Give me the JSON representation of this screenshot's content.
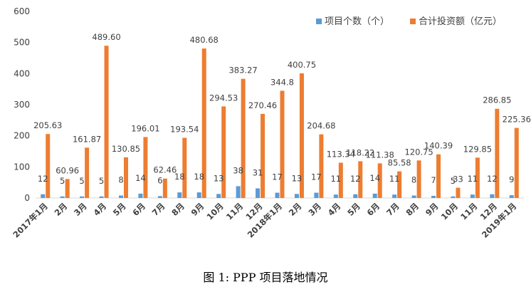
{
  "chart_data": {
    "type": "bar",
    "categories": [
      "2017年1月",
      "2月",
      "3月",
      "4月",
      "5月",
      "6月",
      "7月",
      "8月",
      "9月",
      "10月",
      "11月",
      "12月",
      "2018年1月",
      "2月",
      "3月",
      "4月",
      "5月",
      "6月",
      "7月",
      "8月",
      "9月",
      "10月",
      "11月",
      "12月",
      "2019年1月"
    ],
    "series": [
      {
        "name": "项目个数（个）",
        "color": "#5b9bd5",
        "values": [
          12,
          5,
          5,
          5,
          8,
          14,
          6,
          18,
          18,
          13,
          38,
          31,
          17,
          13,
          17,
          11,
          12,
          14,
          11,
          8,
          7,
          5,
          11,
          12,
          9
        ],
        "labels": [
          "12",
          "5",
          "5",
          "5",
          "8",
          "14",
          "6",
          "18",
          "18",
          "13",
          "38",
          "31",
          "17",
          "13",
          "17",
          "11",
          "12",
          "14",
          "11",
          "8",
          "7",
          "5",
          "11",
          "12",
          "9"
        ]
      },
      {
        "name": "合计投资额（亿元）",
        "color": "#ed7d31",
        "values": [
          205.63,
          60.96,
          161.87,
          489.6,
          130.85,
          196.01,
          62.46,
          193.54,
          480.68,
          294.53,
          383.27,
          270.46,
          344.8,
          400.75,
          204.68,
          113.34,
          118.22,
          111.38,
          85.58,
          120.75,
          140.39,
          33,
          129.85,
          286.85,
          225.36
        ],
        "labels": [
          "205.63",
          "60.96",
          "161.87",
          "489.60",
          "130.85",
          "196.01",
          "62.46",
          "193.54",
          "480.68",
          "294.53",
          "383.27",
          "270.46",
          "344.8",
          "400.75",
          "204.68",
          "113.34",
          "118.22",
          "111.38",
          "85.58",
          "120.75",
          "140.39",
          "33",
          "129.85",
          "286.85",
          "225.36"
        ]
      }
    ],
    "ylim": [
      0,
      600
    ],
    "yticks": [
      0,
      100,
      200,
      300,
      400,
      500,
      600
    ],
    "legend_position": "top-right",
    "grid": false
  },
  "caption": "图 1:  PPP 项目落地情况"
}
